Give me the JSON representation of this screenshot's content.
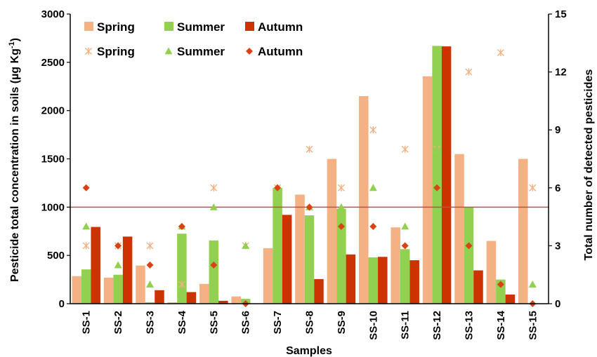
{
  "chart_data": {
    "type": "bar",
    "categories": [
      "SS-1",
      "SS-2",
      "SS-3",
      "SS-4",
      "SS-5",
      "SS-6",
      "SS-7",
      "SS-8",
      "SS-9",
      "SS-10",
      "SS-11",
      "SS-12",
      "SS-13",
      "SS-14",
      "SS-15"
    ],
    "xlabel": "Samples",
    "ylabel": "Pesticide total concentration in  soils (µg Kg",
    "ylabel_sup": "-1",
    "ylabel_end": ")",
    "y2label": "Total number of detected pesticides",
    "ylim": [
      0,
      3000
    ],
    "y2lim": [
      0,
      15
    ],
    "yticks": [
      "0",
      "500",
      "1000",
      "1500",
      "2000",
      "2500",
      "3000"
    ],
    "y2ticks": [
      "0",
      "3",
      "6",
      "9",
      "12",
      "15"
    ],
    "reference_line": 1000,
    "bar_series": [
      {
        "name": "Spring",
        "color": "#F4B183",
        "values": [
          285,
          270,
          395,
          15,
          205,
          75,
          575,
          1130,
          1500,
          2150,
          790,
          2355,
          1550,
          650,
          1500
        ]
      },
      {
        "name": "Summer",
        "color": "#92D050",
        "values": [
          355,
          300,
          15,
          725,
          655,
          50,
          1200,
          915,
          985,
          480,
          565,
          2670,
          1000,
          250,
          0
        ]
      },
      {
        "name": "Autumn",
        "color": "#CC3300",
        "values": [
          795,
          695,
          140,
          120,
          30,
          0,
          920,
          255,
          510,
          485,
          450,
          2665,
          345,
          95,
          0
        ]
      }
    ],
    "marker_series": [
      {
        "name": "Spring",
        "marker": "asterisk",
        "color": "#F4B183",
        "values": [
          3,
          3,
          3,
          1,
          6,
          3,
          6,
          8,
          6,
          9,
          8,
          8,
          12,
          13,
          6
        ]
      },
      {
        "name": "Summer",
        "marker": "triangle",
        "color": "#92D050",
        "values": [
          4,
          2,
          1,
          4,
          5,
          3,
          6,
          5,
          5,
          6,
          4,
          8,
          3,
          1,
          1
        ]
      },
      {
        "name": "Autumn",
        "marker": "diamond",
        "color": "#D84315",
        "values": [
          6,
          3,
          2,
          4,
          2,
          0,
          6,
          5,
          4,
          4,
          3,
          6,
          3,
          1,
          0
        ]
      }
    ],
    "legend": {
      "placement": "top-left",
      "bar_labels": [
        "Spring",
        "Summer",
        "Autumn"
      ],
      "marker_labels": [
        "Spring",
        "Summer",
        "Autumn"
      ]
    },
    "grid": false
  }
}
